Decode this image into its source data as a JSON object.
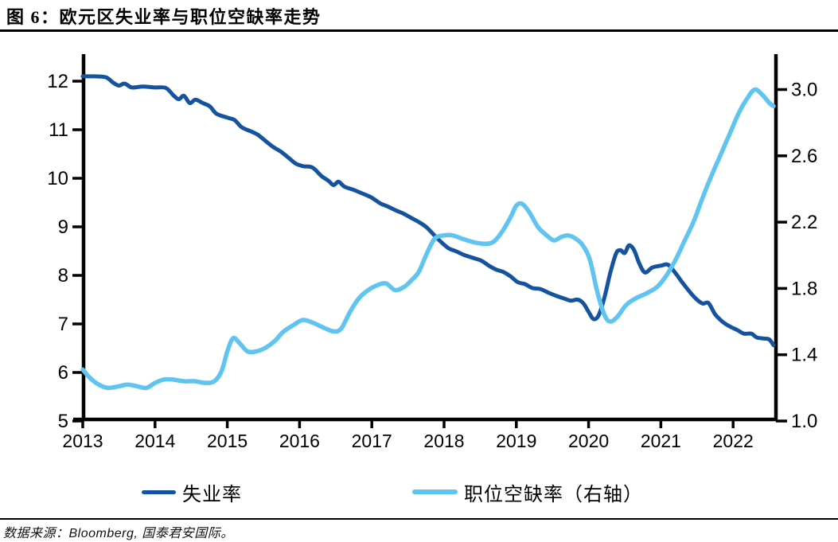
{
  "header": {
    "title": "图 6：欧元区失业率与职位空缺率走势"
  },
  "source": {
    "text": "数据来源：Bloomberg, 国泰君安国际。"
  },
  "legend": {
    "items": [
      {
        "label": "失业率",
        "color": "#1553a0"
      },
      {
        "label": "职位空缺率（右轴）",
        "color": "#5fc5f0"
      }
    ]
  },
  "colors": {
    "axis": "#000000",
    "unemployment_line": "#1553a0",
    "vacancy_line": "#5fc5f0"
  },
  "chart_data": {
    "type": "line",
    "title": "欧元区失业率与职位空缺率走势",
    "grid": false,
    "legend_position": "bottom",
    "x_axis": {
      "ticks": [
        2013,
        2014,
        2015,
        2016,
        2017,
        2018,
        2019,
        2020,
        2021,
        2022
      ],
      "range": [
        2013,
        2022.6
      ]
    },
    "left_axis": {
      "ticks": [
        5,
        6,
        7,
        8,
        9,
        10,
        11,
        12
      ],
      "range": [
        5,
        12.5
      ]
    },
    "right_axis": {
      "tick_labels": [
        "1.0",
        "1.4",
        "1.8",
        "2.2",
        "2.6",
        "3.0"
      ],
      "ticks": [
        1.0,
        1.4,
        1.8,
        2.2,
        2.6,
        3.0
      ],
      "range": [
        1.0,
        3.2
      ]
    },
    "series": [
      {
        "name": "失业率",
        "axis": "left",
        "color": "#1553a0",
        "points": [
          [
            2013.0,
            12.1
          ],
          [
            2013.15,
            12.1
          ],
          [
            2013.32,
            12.08
          ],
          [
            2013.42,
            11.97
          ],
          [
            2013.5,
            11.91
          ],
          [
            2013.58,
            11.95
          ],
          [
            2013.68,
            11.87
          ],
          [
            2013.83,
            11.89
          ],
          [
            2014.0,
            11.87
          ],
          [
            2014.15,
            11.86
          ],
          [
            2014.26,
            11.7
          ],
          [
            2014.33,
            11.63
          ],
          [
            2014.4,
            11.7
          ],
          [
            2014.48,
            11.55
          ],
          [
            2014.56,
            11.62
          ],
          [
            2014.66,
            11.55
          ],
          [
            2014.76,
            11.48
          ],
          [
            2014.85,
            11.33
          ],
          [
            2015.0,
            11.25
          ],
          [
            2015.1,
            11.2
          ],
          [
            2015.2,
            11.05
          ],
          [
            2015.32,
            10.97
          ],
          [
            2015.42,
            10.9
          ],
          [
            2015.52,
            10.78
          ],
          [
            2015.63,
            10.65
          ],
          [
            2015.74,
            10.55
          ],
          [
            2015.85,
            10.42
          ],
          [
            2015.95,
            10.3
          ],
          [
            2016.05,
            10.25
          ],
          [
            2016.18,
            10.22
          ],
          [
            2016.3,
            10.05
          ],
          [
            2016.4,
            9.95
          ],
          [
            2016.47,
            9.86
          ],
          [
            2016.54,
            9.93
          ],
          [
            2016.62,
            9.83
          ],
          [
            2016.75,
            9.76
          ],
          [
            2016.88,
            9.68
          ],
          [
            2017.0,
            9.6
          ],
          [
            2017.12,
            9.48
          ],
          [
            2017.22,
            9.42
          ],
          [
            2017.33,
            9.34
          ],
          [
            2017.44,
            9.27
          ],
          [
            2017.55,
            9.18
          ],
          [
            2017.65,
            9.1
          ],
          [
            2017.75,
            9.0
          ],
          [
            2017.85,
            8.85
          ],
          [
            2017.95,
            8.7
          ],
          [
            2018.06,
            8.56
          ],
          [
            2018.16,
            8.5
          ],
          [
            2018.28,
            8.42
          ],
          [
            2018.4,
            8.36
          ],
          [
            2018.52,
            8.3
          ],
          [
            2018.62,
            8.2
          ],
          [
            2018.72,
            8.12
          ],
          [
            2018.82,
            8.07
          ],
          [
            2018.92,
            7.98
          ],
          [
            2019.02,
            7.86
          ],
          [
            2019.12,
            7.82
          ],
          [
            2019.22,
            7.74
          ],
          [
            2019.33,
            7.72
          ],
          [
            2019.45,
            7.64
          ],
          [
            2019.55,
            7.58
          ],
          [
            2019.65,
            7.53
          ],
          [
            2019.75,
            7.48
          ],
          [
            2019.85,
            7.5
          ],
          [
            2019.93,
            7.42
          ],
          [
            2020.0,
            7.25
          ],
          [
            2020.07,
            7.1
          ],
          [
            2020.14,
            7.18
          ],
          [
            2020.22,
            7.55
          ],
          [
            2020.3,
            8.05
          ],
          [
            2020.38,
            8.45
          ],
          [
            2020.44,
            8.52
          ],
          [
            2020.5,
            8.46
          ],
          [
            2020.56,
            8.62
          ],
          [
            2020.63,
            8.52
          ],
          [
            2020.7,
            8.25
          ],
          [
            2020.78,
            8.06
          ],
          [
            2020.88,
            8.16
          ],
          [
            2021.0,
            8.2
          ],
          [
            2021.1,
            8.22
          ],
          [
            2021.2,
            8.05
          ],
          [
            2021.3,
            7.85
          ],
          [
            2021.4,
            7.66
          ],
          [
            2021.5,
            7.5
          ],
          [
            2021.58,
            7.42
          ],
          [
            2021.66,
            7.43
          ],
          [
            2021.75,
            7.2
          ],
          [
            2021.85,
            7.05
          ],
          [
            2021.95,
            6.95
          ],
          [
            2022.05,
            6.88
          ],
          [
            2022.15,
            6.8
          ],
          [
            2022.25,
            6.8
          ],
          [
            2022.33,
            6.72
          ],
          [
            2022.42,
            6.7
          ],
          [
            2022.5,
            6.68
          ],
          [
            2022.56,
            6.56
          ]
        ]
      },
      {
        "name": "职位空缺率（右轴）",
        "axis": "right",
        "color": "#5fc5f0",
        "points": [
          [
            2013.0,
            1.31
          ],
          [
            2013.1,
            1.26
          ],
          [
            2013.22,
            1.22
          ],
          [
            2013.35,
            1.2
          ],
          [
            2013.5,
            1.21
          ],
          [
            2013.62,
            1.22
          ],
          [
            2013.75,
            1.21
          ],
          [
            2013.88,
            1.2
          ],
          [
            2014.0,
            1.23
          ],
          [
            2014.12,
            1.25
          ],
          [
            2014.25,
            1.25
          ],
          [
            2014.4,
            1.24
          ],
          [
            2014.55,
            1.24
          ],
          [
            2014.7,
            1.23
          ],
          [
            2014.82,
            1.24
          ],
          [
            2014.92,
            1.3
          ],
          [
            2015.0,
            1.42
          ],
          [
            2015.08,
            1.5
          ],
          [
            2015.17,
            1.47
          ],
          [
            2015.28,
            1.42
          ],
          [
            2015.4,
            1.42
          ],
          [
            2015.52,
            1.44
          ],
          [
            2015.65,
            1.48
          ],
          [
            2015.78,
            1.54
          ],
          [
            2015.92,
            1.58
          ],
          [
            2016.05,
            1.61
          ],
          [
            2016.2,
            1.59
          ],
          [
            2016.35,
            1.56
          ],
          [
            2016.48,
            1.54
          ],
          [
            2016.58,
            1.56
          ],
          [
            2016.7,
            1.66
          ],
          [
            2016.82,
            1.74
          ],
          [
            2016.95,
            1.79
          ],
          [
            2017.08,
            1.82
          ],
          [
            2017.2,
            1.83
          ],
          [
            2017.32,
            1.79
          ],
          [
            2017.45,
            1.81
          ],
          [
            2017.55,
            1.85
          ],
          [
            2017.65,
            1.9
          ],
          [
            2017.75,
            2.0
          ],
          [
            2017.87,
            2.1
          ],
          [
            2018.0,
            2.12
          ],
          [
            2018.12,
            2.12
          ],
          [
            2018.25,
            2.1
          ],
          [
            2018.4,
            2.08
          ],
          [
            2018.55,
            2.07
          ],
          [
            2018.68,
            2.08
          ],
          [
            2018.8,
            2.14
          ],
          [
            2018.92,
            2.23
          ],
          [
            2019.0,
            2.3
          ],
          [
            2019.08,
            2.31
          ],
          [
            2019.18,
            2.26
          ],
          [
            2019.3,
            2.17
          ],
          [
            2019.42,
            2.12
          ],
          [
            2019.52,
            2.09
          ],
          [
            2019.62,
            2.11
          ],
          [
            2019.72,
            2.12
          ],
          [
            2019.82,
            2.1
          ],
          [
            2019.92,
            2.06
          ],
          [
            2020.02,
            1.97
          ],
          [
            2020.12,
            1.78
          ],
          [
            2020.22,
            1.64
          ],
          [
            2020.3,
            1.6
          ],
          [
            2020.4,
            1.63
          ],
          [
            2020.52,
            1.7
          ],
          [
            2020.65,
            1.74
          ],
          [
            2020.8,
            1.77
          ],
          [
            2020.95,
            1.81
          ],
          [
            2021.08,
            1.88
          ],
          [
            2021.2,
            1.97
          ],
          [
            2021.32,
            2.08
          ],
          [
            2021.45,
            2.2
          ],
          [
            2021.58,
            2.35
          ],
          [
            2021.7,
            2.48
          ],
          [
            2021.82,
            2.6
          ],
          [
            2021.95,
            2.73
          ],
          [
            2022.08,
            2.86
          ],
          [
            2022.2,
            2.95
          ],
          [
            2022.3,
            3.0
          ],
          [
            2022.4,
            2.97
          ],
          [
            2022.5,
            2.92
          ],
          [
            2022.56,
            2.9
          ]
        ]
      }
    ]
  }
}
